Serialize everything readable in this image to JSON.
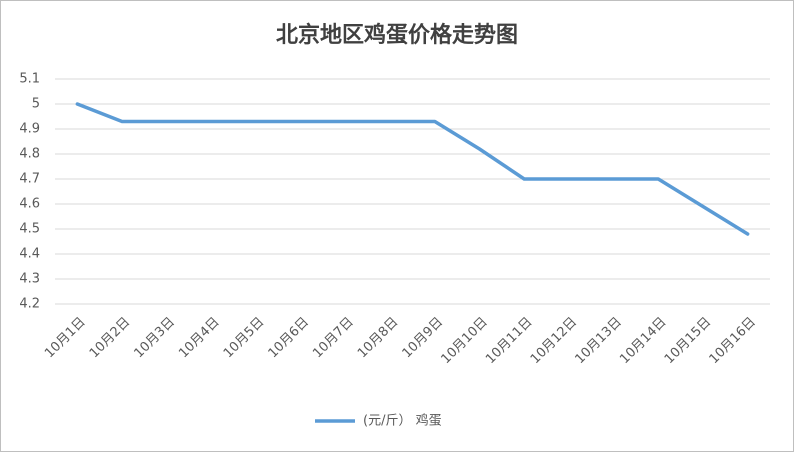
{
  "chart_data": {
    "type": "line",
    "title": "北京地区鸡蛋价格走势图",
    "categories": [
      "10月1日",
      "10月2日",
      "10月3日",
      "10月4日",
      "10月5日",
      "10月6日",
      "10月7日",
      "10月8日",
      "10月9日",
      "10月10日",
      "10月11日",
      "10月12日",
      "10月13日",
      "10月14日",
      "10月15日",
      "10月16日"
    ],
    "series": [
      {
        "name": "(元/斤） 鸡蛋",
        "color": "#5b9bd5",
        "values": [
          5,
          4.93,
          4.93,
          4.93,
          4.93,
          4.93,
          4.93,
          4.93,
          4.93,
          4.82,
          4.7,
          4.7,
          4.7,
          4.7,
          4.59,
          4.48
        ]
      }
    ],
    "ylim": [
      4.2,
      5.1
    ],
    "yticks": [
      4.2,
      4.3,
      4.4,
      4.5,
      4.6,
      4.7,
      4.8,
      4.9,
      5,
      5.1
    ],
    "grid": true,
    "legend": "bottom"
  }
}
